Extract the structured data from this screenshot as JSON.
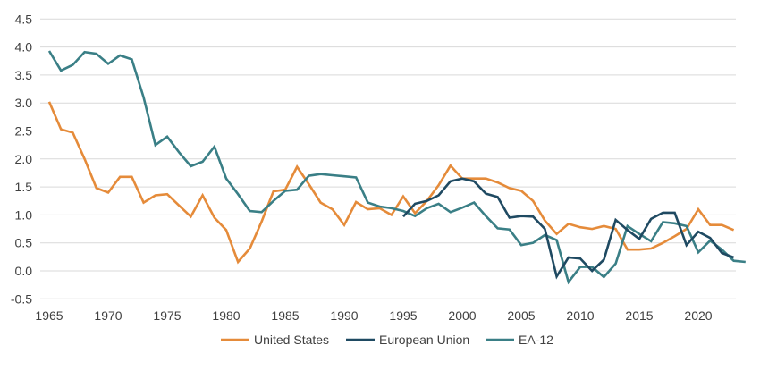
{
  "chart_data": {
    "type": "line",
    "title": "",
    "xlabel": "",
    "ylabel": "",
    "ylim": [
      -0.5,
      4.5
    ],
    "xlim": [
      1965,
      2023
    ],
    "grid": true,
    "legend_position": "bottom",
    "y_ticks": [
      "-0.5",
      "0.0",
      "0.5",
      "1.0",
      "1.5",
      "2.0",
      "2.5",
      "3.0",
      "3.5",
      "4.0",
      "4.5"
    ],
    "y_tick_values": [
      -0.5,
      0.0,
      0.5,
      1.0,
      1.5,
      2.0,
      2.5,
      3.0,
      3.5,
      4.0,
      4.5
    ],
    "x_ticks": [
      "1965",
      "1970",
      "1975",
      "1980",
      "1985",
      "1990",
      "1995",
      "2000",
      "2005",
      "2010",
      "2015",
      "2020"
    ],
    "x_tick_values": [
      1965,
      1970,
      1975,
      1980,
      1985,
      1990,
      1995,
      2000,
      2005,
      2010,
      2015,
      2020
    ],
    "series": [
      {
        "name": "United States",
        "color": "#E58B3A",
        "start_year": 1965,
        "values": [
          3.02,
          2.53,
          2.47,
          2.0,
          1.48,
          1.4,
          1.68,
          1.68,
          1.22,
          1.35,
          1.37,
          1.17,
          0.97,
          1.35,
          0.95,
          0.73,
          0.16,
          0.4,
          0.88,
          1.42,
          1.45,
          1.86,
          1.55,
          1.22,
          1.1,
          0.82,
          1.23,
          1.1,
          1.12,
          1.0,
          1.33,
          1.03,
          1.25,
          1.53,
          1.88,
          1.65,
          1.65,
          1.65,
          1.58,
          1.48,
          1.43,
          1.25,
          0.9,
          0.66,
          0.84,
          0.78,
          0.75,
          0.8,
          0.75,
          0.38,
          0.38,
          0.4,
          0.5,
          0.62,
          0.75,
          1.1,
          0.82,
          0.82,
          0.73
        ]
      },
      {
        "name": "European Union",
        "color": "#1F4A62",
        "start_year": 1995,
        "values": [
          0.97,
          1.2,
          1.25,
          1.35,
          1.6,
          1.65,
          1.6,
          1.38,
          1.32,
          0.95,
          0.98,
          0.97,
          0.75,
          -0.1,
          0.24,
          0.22,
          0.0,
          0.2,
          0.91,
          0.73,
          0.57,
          0.93,
          1.04,
          1.04,
          0.46,
          0.7,
          0.59,
          0.32,
          0.24
        ]
      },
      {
        "name": "EA-12",
        "color": "#3A7F86",
        "start_year": 1965,
        "values": [
          3.93,
          3.58,
          3.68,
          3.91,
          3.88,
          3.7,
          3.85,
          3.78,
          3.1,
          2.25,
          2.4,
          2.12,
          1.87,
          1.95,
          2.22,
          1.65,
          1.37,
          1.07,
          1.05,
          1.25,
          1.43,
          1.45,
          1.7,
          1.73,
          1.71,
          1.69,
          1.67,
          1.22,
          1.15,
          1.12,
          1.07,
          0.98,
          1.12,
          1.2,
          1.05,
          1.13,
          1.22,
          0.98,
          0.76,
          0.74,
          0.46,
          0.5,
          0.64,
          0.55,
          -0.2,
          0.07,
          0.07,
          -0.11,
          0.13,
          0.8,
          0.66,
          0.53,
          0.87,
          0.85,
          0.8,
          0.33,
          0.54,
          0.38,
          0.18,
          0.16
        ]
      }
    ]
  }
}
